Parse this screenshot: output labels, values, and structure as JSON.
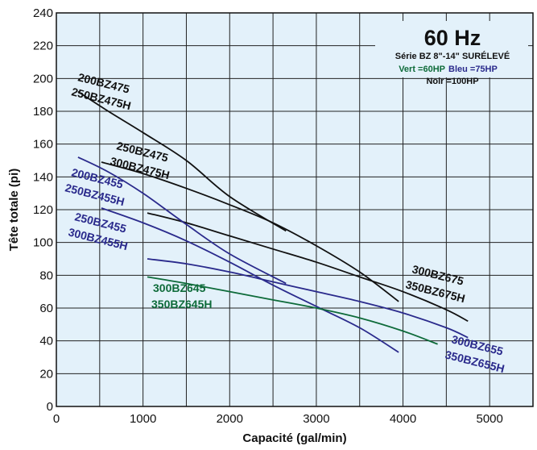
{
  "chart_data": {
    "type": "line",
    "title": "",
    "xlabel": "Capacité (gal/min)",
    "ylabel": "Tête totale (pi)",
    "xlim": [
      0,
      5500
    ],
    "ylim": [
      0,
      240
    ],
    "xticks": [
      0,
      1000,
      2000,
      3000,
      4000,
      5000
    ],
    "yticks": [
      0,
      20,
      40,
      60,
      80,
      100,
      120,
      140,
      160,
      180,
      200,
      220,
      240
    ],
    "grid": true,
    "legend": {
      "placement": "top-right",
      "frequency": "60 Hz",
      "series_line": "Série BZ 8\"-14\" SURÉLEVÉ",
      "green_text": "Vert =60HP",
      "blue_text": "Bleu =75HP",
      "black_text": "Noir =100HP"
    },
    "colors": {
      "black": "#111111",
      "blue": "#2a2a8c",
      "green": "#0e6b3a",
      "plot_bg": "#e3f1fa",
      "grid": "#222222"
    },
    "series": [
      {
        "name": "200BZ475 / 250BZ475H",
        "color": "black",
        "label_lines": [
          "200BZ475",
          "250BZ475H"
        ],
        "x": [
          250,
          600,
          1000,
          1500,
          2000,
          2650
        ],
        "y": [
          192,
          180,
          167,
          150,
          128,
          107
        ]
      },
      {
        "name": "250BZ475 / 300BZ475H",
        "color": "black",
        "label_lines": [
          "250BZ475",
          "300BZ475H"
        ],
        "x": [
          520,
          1000,
          1500,
          2000,
          2500,
          3000,
          3500,
          3950
        ],
        "y": [
          149,
          142,
          133,
          123,
          112,
          98,
          82,
          64
        ]
      },
      {
        "name": "300BZ675 / 350BZ675H",
        "color": "black",
        "label_lines": [
          "300BZ675",
          "350BZ675H"
        ],
        "x": [
          1050,
          1500,
          2000,
          2500,
          3000,
          3500,
          4000,
          4500,
          4750
        ],
        "y": [
          118,
          112,
          104,
          96,
          88,
          79,
          70,
          59,
          52
        ]
      },
      {
        "name": "200BZ455 / 250BZ455H",
        "color": "blue",
        "label_lines": [
          "200BZ455",
          "250BZ455H"
        ],
        "x": [
          250,
          600,
          1000,
          1500,
          2000,
          2650
        ],
        "y": [
          152,
          143,
          130,
          111,
          93,
          75
        ]
      },
      {
        "name": "250BZ455 / 300BZ455H",
        "color": "blue",
        "label_lines": [
          "250BZ455",
          "300BZ455H"
        ],
        "x": [
          520,
          1000,
          1500,
          2000,
          2500,
          3000,
          3500,
          3950
        ],
        "y": [
          121,
          112,
          101,
          88,
          74,
          61,
          48,
          33
        ]
      },
      {
        "name": "300BZ655 / 350BZ655H",
        "color": "blue",
        "label_lines": [
          "300BZ655",
          "350BZ655H"
        ],
        "x": [
          1050,
          1500,
          2000,
          2500,
          3000,
          3500,
          4000,
          4500,
          4750
        ],
        "y": [
          90,
          87,
          82,
          76,
          70,
          64,
          57,
          48,
          42
        ]
      },
      {
        "name": "300BZ645 / 350BZ645H",
        "color": "green",
        "label_lines": [
          "300BZ645",
          "350BZ645H"
        ],
        "x": [
          1050,
          1500,
          2000,
          2500,
          3000,
          3500,
          4000,
          4400
        ],
        "y": [
          79,
          75,
          70,
          65,
          60,
          54,
          46,
          38
        ]
      }
    ]
  }
}
